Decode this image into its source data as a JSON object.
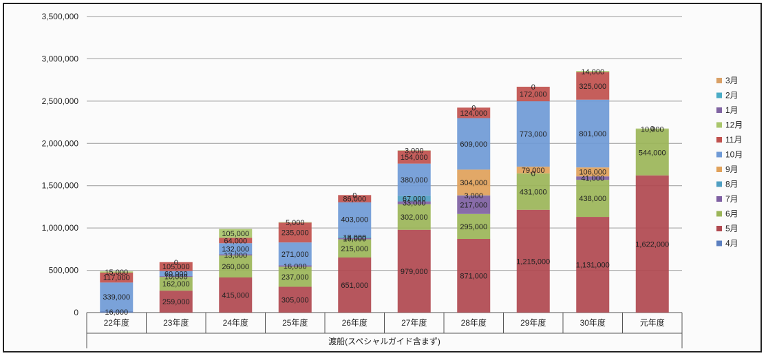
{
  "chart_data": {
    "type": "bar",
    "stacked": true,
    "xlabel": "渡船(スペシャルガイド含まず)",
    "ylabel": "",
    "ylim": [
      0,
      3500000
    ],
    "yticks": [
      0,
      500000,
      1000000,
      1500000,
      2000000,
      2500000,
      3000000,
      3500000
    ],
    "ytick_labels": [
      "0",
      "500,000",
      "1,000,000",
      "1,500,000",
      "2,000,000",
      "2,500,000",
      "3,000,000",
      "3,500,000"
    ],
    "grid": true,
    "legend_position": "right",
    "categories": [
      "22年度",
      "23年度",
      "24年度",
      "25年度",
      "26年度",
      "27年度",
      "28年度",
      "29年度",
      "30年度",
      "元年度"
    ],
    "series": [
      {
        "name": "4月",
        "color": "#5b7fbf",
        "values": [
          16000,
          null,
          null,
          null,
          null,
          null,
          null,
          null,
          null,
          null
        ],
        "labels": [
          "16,000",
          "",
          "",
          "",
          "",
          "",
          "",
          "",
          "",
          ""
        ]
      },
      {
        "name": "5月",
        "color": "#b0484f",
        "values": [
          null,
          259000,
          415000,
          305000,
          651000,
          979000,
          871000,
          1215000,
          1131000,
          1622000
        ],
        "labels": [
          "",
          "259,000",
          "415,000",
          "305,000",
          "651,000",
          "979,000",
          "871,000",
          "1,215,000",
          "1,131,000",
          "1,622,000"
        ]
      },
      {
        "name": "6月",
        "color": "#9bb558",
        "values": [
          null,
          162000,
          260000,
          237000,
          215000,
          302000,
          295000,
          431000,
          438000,
          544000
        ],
        "labels": [
          "",
          "162,000",
          "260,000",
          "237,000",
          "215,000",
          "302,000",
          "295,000",
          "431,000",
          "438,000",
          "544,000"
        ]
      },
      {
        "name": "7月",
        "color": "#7e5fa2",
        "values": [
          null,
          10000,
          13000,
          16000,
          16000,
          33000,
          217000,
          0,
          41000,
          null
        ],
        "labels": [
          "",
          "10,000",
          "13,000",
          "16,000",
          "16,000",
          "33,000",
          "217,000",
          "0",
          "41,000",
          ""
        ]
      },
      {
        "name": "8月",
        "color": "#4f9fc2",
        "values": [
          null,
          null,
          null,
          null,
          18000,
          67000,
          3000,
          null,
          null,
          null
        ],
        "labels": [
          "",
          "",
          "",
          "",
          "18,000",
          "67,000",
          "3,000",
          "",
          "",
          ""
        ]
      },
      {
        "name": "9月",
        "color": "#e0a15a",
        "values": [
          null,
          null,
          null,
          null,
          null,
          null,
          304000,
          79000,
          106000,
          null
        ],
        "labels": [
          "",
          "",
          "",
          "",
          "",
          "",
          "304,000",
          "79,000",
          "106,000",
          ""
        ]
      },
      {
        "name": "10月",
        "color": "#6f9ad6",
        "values": [
          339000,
          60000,
          132000,
          271000,
          403000,
          380000,
          609000,
          773000,
          801000,
          null
        ],
        "labels": [
          "339,000",
          "60,000",
          "132,000",
          "271,000",
          "403,000",
          "380,000",
          "609,000",
          "773,000",
          "801,000",
          ""
        ]
      },
      {
        "name": "11月",
        "color": "#c0504d",
        "values": [
          117000,
          105000,
          64000,
          235000,
          86000,
          154000,
          124000,
          172000,
          325000,
          null
        ],
        "labels": [
          "117,000",
          "105,000",
          "64,000",
          "235,000",
          "86,000",
          "154,000",
          "124,000",
          "172,000",
          "325,000",
          ""
        ]
      },
      {
        "name": "12月",
        "color": "#a9c66b",
        "values": [
          15000,
          0,
          105000,
          5000,
          0,
          3000,
          0,
          0,
          14000,
          10000
        ],
        "labels": [
          "15,000",
          "0",
          "105,000",
          "5,000",
          "0",
          "3,000",
          "0",
          "0",
          "14,000",
          "10,000"
        ]
      },
      {
        "name": "1月",
        "color": "#8064a2",
        "values": [
          null,
          null,
          null,
          null,
          null,
          null,
          null,
          null,
          null,
          0
        ],
        "labels": [
          "",
          "",
          "",
          "",
          "",
          "",
          "",
          "",
          "",
          "0"
        ]
      },
      {
        "name": "2月",
        "color": "#4bacc6",
        "values": [
          null,
          null,
          null,
          null,
          null,
          null,
          null,
          null,
          null,
          null
        ],
        "labels": [
          "",
          "",
          "",
          "",
          "",
          "",
          "",
          "",
          "",
          ""
        ]
      },
      {
        "name": "3月",
        "color": "#d9a066",
        "values": [
          null,
          null,
          null,
          null,
          null,
          null,
          null,
          null,
          null,
          null
        ],
        "labels": [
          "",
          "",
          "",
          "",
          "",
          "",
          "",
          "",
          "",
          ""
        ]
      }
    ],
    "legend_order": [
      "3月",
      "2月",
      "1月",
      "12月",
      "11月",
      "10月",
      "9月",
      "8月",
      "7月",
      "6月",
      "5月",
      "4月"
    ]
  }
}
